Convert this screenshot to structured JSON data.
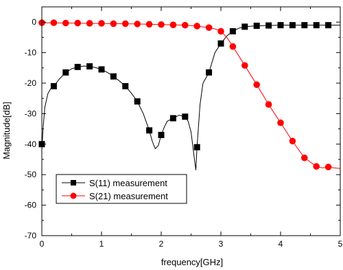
{
  "chart_data": {
    "type": "line",
    "xlabel": "frequency[GHz]",
    "ylabel": "Magnitude[dB]",
    "xlim": [
      0,
      5
    ],
    "ylim": [
      -70,
      5
    ],
    "x_ticks": [
      0,
      1,
      2,
      3,
      4,
      5
    ],
    "y_ticks": [
      0,
      -10,
      -20,
      -30,
      -40,
      -50,
      -60,
      -70
    ],
    "grid": false,
    "legend_position": "lower-left",
    "series": [
      {
        "name": "S(11) measurement",
        "color": "#000000",
        "marker": "square",
        "marker_x": [
          0,
          0.2,
          0.4,
          0.6,
          0.8,
          1.0,
          1.2,
          1.4,
          1.6,
          1.8,
          2.0,
          2.2,
          2.4,
          2.6,
          2.8,
          3.0,
          3.2,
          3.4,
          3.6,
          3.8,
          4.0,
          4.2,
          4.4,
          4.6,
          4.8
        ],
        "marker_y": [
          -40,
          -21,
          -16.5,
          -14.7,
          -14.5,
          -15.5,
          -17.8,
          -21,
          -26,
          -35.5,
          -37,
          -31.5,
          -31,
          -41,
          -16.5,
          -7,
          -3,
          -1.5,
          -1.2,
          -1.1,
          -1.0,
          -1.0,
          -1.0,
          -1.0,
          -1.0
        ],
        "curve_x": [
          0,
          0.02,
          0.05,
          0.1,
          0.15,
          0.2,
          0.3,
          0.4,
          0.5,
          0.6,
          0.7,
          0.8,
          0.9,
          1.0,
          1.1,
          1.2,
          1.3,
          1.4,
          1.5,
          1.6,
          1.7,
          1.8,
          1.85,
          1.9,
          1.95,
          2.0,
          2.05,
          2.1,
          2.2,
          2.3,
          2.4,
          2.45,
          2.5,
          2.55,
          2.58,
          2.6,
          2.65,
          2.7,
          2.8,
          2.9,
          3.0,
          3.1,
          3.2,
          3.3,
          3.4,
          3.6,
          3.8,
          4.0,
          4.5,
          5.0
        ],
        "curve_y": [
          -42,
          -35,
          -28,
          -23.5,
          -21.8,
          -21,
          -18.5,
          -16.5,
          -15.3,
          -14.7,
          -14.4,
          -14.5,
          -14.9,
          -15.5,
          -16.5,
          -17.8,
          -19.3,
          -21,
          -23.3,
          -26,
          -30,
          -35.5,
          -39,
          -41.5,
          -40.5,
          -37,
          -34.5,
          -32.5,
          -31.5,
          -30.5,
          -31,
          -32.5,
          -36,
          -44,
          -48.5,
          -41,
          -27,
          -20,
          -16.5,
          -10,
          -7,
          -4.5,
          -3,
          -2,
          -1.5,
          -1.2,
          -1.1,
          -1.0,
          -1.0,
          -1.0
        ]
      },
      {
        "name": "S(21) measurement",
        "color": "#ff0000",
        "marker": "circle",
        "marker_x": [
          0,
          0.2,
          0.4,
          0.6,
          0.8,
          1.0,
          1.2,
          1.4,
          1.6,
          1.8,
          2.0,
          2.2,
          2.4,
          2.6,
          2.8,
          3.0,
          3.2,
          3.4,
          3.6,
          3.8,
          4.0,
          4.2,
          4.4,
          4.6,
          4.8
        ],
        "marker_y": [
          -0.2,
          -0.2,
          -0.3,
          -0.3,
          -0.4,
          -0.4,
          -0.5,
          -0.5,
          -0.6,
          -0.7,
          -0.8,
          -0.9,
          -1.0,
          -1.3,
          -1.8,
          -3.0,
          -8.0,
          -14.2,
          -20.5,
          -27,
          -33,
          -39,
          -44.5,
          -47.3,
          -47.5
        ],
        "curve_x": [
          0,
          0.4,
          0.8,
          1.2,
          1.6,
          2.0,
          2.4,
          2.6,
          2.8,
          2.9,
          3.0,
          3.1,
          3.2,
          3.4,
          3.6,
          3.8,
          4.0,
          4.2,
          4.4,
          4.6,
          4.7,
          4.8,
          4.9,
          5.0
        ],
        "curve_y": [
          -0.2,
          -0.3,
          -0.4,
          -0.5,
          -0.6,
          -0.8,
          -1.0,
          -1.3,
          -1.8,
          -2.2,
          -3.0,
          -5.0,
          -8.0,
          -14.2,
          -20.5,
          -27,
          -33,
          -39,
          -44.5,
          -47.3,
          -47.8,
          -47.5,
          -47.8,
          -48
        ]
      }
    ]
  }
}
